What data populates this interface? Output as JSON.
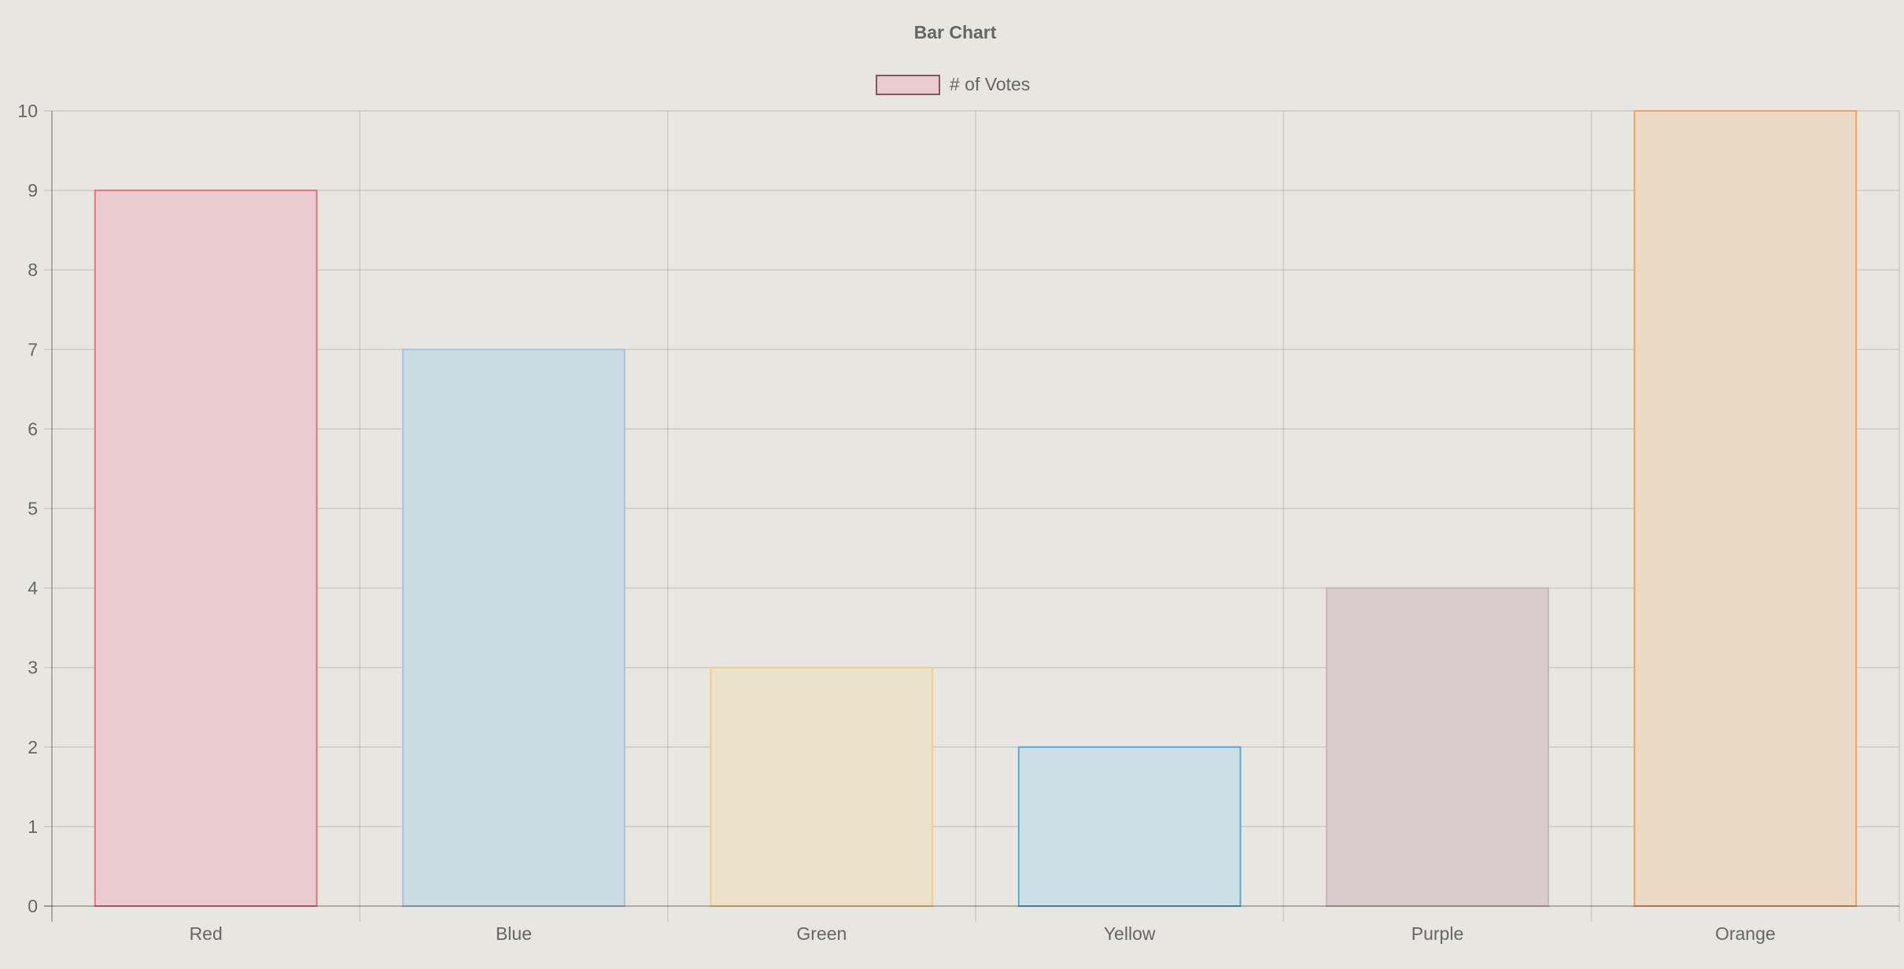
{
  "chart_data": {
    "type": "bar",
    "title": "Bar Chart",
    "categories": [
      "Red",
      "Blue",
      "Green",
      "Yellow",
      "Purple",
      "Orange"
    ],
    "series": [
      {
        "name": "# of Votes",
        "values": [
          9,
          7,
          3,
          2,
          4,
          10
        ]
      }
    ],
    "ylim": [
      0,
      10
    ],
    "yticks": [
      "0",
      "1",
      "2",
      "3",
      "4",
      "5",
      "6",
      "7",
      "8",
      "9",
      "10"
    ],
    "grid": true,
    "legend_position": "top",
    "colors": {
      "fills": [
        "rgba(255,99,132,0.2)",
        "rgba(54,162,235,0.2)",
        "rgba(255,206,86,0.2)",
        "rgba(75,192,192,0.2)",
        "rgba(153,102,255,0.2)",
        "rgba(255,159,64,0.2)"
      ],
      "borders": [
        "#ff6384",
        "#36a2eb",
        "#ffce56",
        "#4bc0c0",
        "#9966ff",
        "#ff9f40"
      ],
      "bar_fills": [
        "#eacbcf",
        "#cbdbe2",
        "#ece1ca",
        "#cbdfe5",
        "#d9cccd",
        "#eadac5"
      ],
      "bar_borders": [
        "#e8707f",
        "#a8c4de",
        "#f2d07a",
        "#5aa9dd",
        "#c9b6b9",
        "#f0a35c"
      ],
      "legend_fill": "#eacbcf",
      "legend_border": "#7a5a5e"
    }
  }
}
